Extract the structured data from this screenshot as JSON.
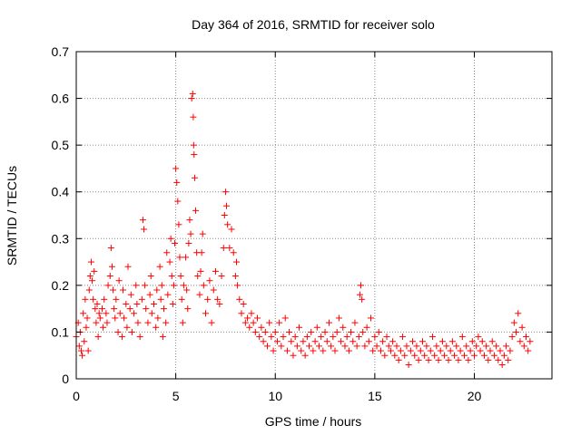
{
  "chart_data": {
    "type": "scatter",
    "title": "Day 364 of 2016, SRMTID for receiver solo",
    "xlabel": "GPS time / hours",
    "ylabel": "SRMTID / TECUs",
    "xlim": [
      0,
      23.9
    ],
    "ylim": [
      0,
      0.7
    ],
    "xticks": [
      0,
      5,
      10,
      15,
      20
    ],
    "yticks": [
      0,
      0.1,
      0.2,
      0.3,
      0.4,
      0.5,
      0.6,
      0.7
    ],
    "xtick_labels": [
      "0",
      "5",
      "10",
      "15",
      "20"
    ],
    "ytick_labels": [
      "0",
      "0.1",
      "0.2",
      "0.3",
      "0.4",
      "0.5",
      "0.6",
      "0.7"
    ],
    "grid": true,
    "marker": "+",
    "color": "#ff0000",
    "series": [
      {
        "name": "SRMTID",
        "points": [
          [
            0.0,
            0.09
          ],
          [
            0.1,
            0.12
          ],
          [
            0.15,
            0.07
          ],
          [
            0.2,
            0.1
          ],
          [
            0.25,
            0.06
          ],
          [
            0.3,
            0.05
          ],
          [
            0.35,
            0.14
          ],
          [
            0.4,
            0.08
          ],
          [
            0.45,
            0.17
          ],
          [
            0.5,
            0.11
          ],
          [
            0.55,
            0.13
          ],
          [
            0.6,
            0.06
          ],
          [
            0.65,
            0.19
          ],
          [
            0.7,
            0.22
          ],
          [
            0.75,
            0.25
          ],
          [
            0.8,
            0.21
          ],
          [
            0.85,
            0.17
          ],
          [
            0.9,
            0.23
          ],
          [
            0.95,
            0.15
          ],
          [
            1.0,
            0.12
          ],
          [
            1.05,
            0.16
          ],
          [
            1.1,
            0.09
          ],
          [
            1.15,
            0.14
          ],
          [
            1.2,
            0.13
          ],
          [
            1.3,
            0.15
          ],
          [
            1.35,
            0.11
          ],
          [
            1.4,
            0.17
          ],
          [
            1.5,
            0.14
          ],
          [
            1.55,
            0.12
          ],
          [
            1.6,
            0.2
          ],
          [
            1.7,
            0.22
          ],
          [
            1.75,
            0.28
          ],
          [
            1.8,
            0.24
          ],
          [
            1.85,
            0.19
          ],
          [
            1.9,
            0.15
          ],
          [
            1.95,
            0.13
          ],
          [
            2.0,
            0.17
          ],
          [
            2.1,
            0.1
          ],
          [
            2.15,
            0.21
          ],
          [
            2.2,
            0.14
          ],
          [
            2.3,
            0.09
          ],
          [
            2.35,
            0.19
          ],
          [
            2.4,
            0.13
          ],
          [
            2.5,
            0.16
          ],
          [
            2.55,
            0.11
          ],
          [
            2.6,
            0.24
          ],
          [
            2.7,
            0.15
          ],
          [
            2.75,
            0.18
          ],
          [
            2.8,
            0.1
          ],
          [
            2.9,
            0.14
          ],
          [
            3.0,
            0.2
          ],
          [
            3.05,
            0.16
          ],
          [
            3.1,
            0.12
          ],
          [
            3.2,
            0.09
          ],
          [
            3.3,
            0.17
          ],
          [
            3.35,
            0.34
          ],
          [
            3.4,
            0.32
          ],
          [
            3.45,
            0.2
          ],
          [
            3.5,
            0.15
          ],
          [
            3.6,
            0.12
          ],
          [
            3.7,
            0.18
          ],
          [
            3.75,
            0.22
          ],
          [
            3.8,
            0.14
          ],
          [
            3.9,
            0.16
          ],
          [
            4.0,
            0.11
          ],
          [
            4.05,
            0.19
          ],
          [
            4.1,
            0.13
          ],
          [
            4.2,
            0.24
          ],
          [
            4.25,
            0.17
          ],
          [
            4.3,
            0.2
          ],
          [
            4.35,
            0.09
          ],
          [
            4.4,
            0.15
          ],
          [
            4.5,
            0.12
          ],
          [
            4.55,
            0.27
          ],
          [
            4.6,
            0.18
          ],
          [
            4.7,
            0.25
          ],
          [
            4.75,
            0.3
          ],
          [
            4.8,
            0.22
          ],
          [
            4.85,
            0.16
          ],
          [
            4.9,
            0.2
          ],
          [
            4.95,
            0.29
          ],
          [
            5.0,
            0.45
          ],
          [
            5.05,
            0.42
          ],
          [
            5.1,
            0.38
          ],
          [
            5.15,
            0.33
          ],
          [
            5.2,
            0.26
          ],
          [
            5.25,
            0.22
          ],
          [
            5.3,
            0.17
          ],
          [
            5.35,
            0.12
          ],
          [
            5.4,
            0.2
          ],
          [
            5.5,
            0.26
          ],
          [
            5.55,
            0.19
          ],
          [
            5.6,
            0.15
          ],
          [
            5.65,
            0.29
          ],
          [
            5.7,
            0.34
          ],
          [
            5.75,
            0.31
          ],
          [
            5.8,
            0.6
          ],
          [
            5.85,
            0.61
          ],
          [
            5.88,
            0.56
          ],
          [
            5.9,
            0.5
          ],
          [
            5.92,
            0.48
          ],
          [
            5.95,
            0.43
          ],
          [
            6.0,
            0.36
          ],
          [
            6.05,
            0.27
          ],
          [
            6.1,
            0.22
          ],
          [
            6.2,
            0.18
          ],
          [
            6.25,
            0.23
          ],
          [
            6.3,
            0.27
          ],
          [
            6.35,
            0.31
          ],
          [
            6.4,
            0.2
          ],
          [
            6.5,
            0.14
          ],
          [
            6.6,
            0.17
          ],
          [
            6.7,
            0.21
          ],
          [
            6.8,
            0.12
          ],
          [
            6.9,
            0.19
          ],
          [
            7.0,
            0.23
          ],
          [
            7.1,
            0.17
          ],
          [
            7.2,
            0.16
          ],
          [
            7.3,
            0.22
          ],
          [
            7.4,
            0.28
          ],
          [
            7.45,
            0.35
          ],
          [
            7.5,
            0.4
          ],
          [
            7.55,
            0.37
          ],
          [
            7.6,
            0.33
          ],
          [
            7.7,
            0.28
          ],
          [
            7.8,
            0.32
          ],
          [
            7.9,
            0.27
          ],
          [
            8.0,
            0.22
          ],
          [
            8.05,
            0.25
          ],
          [
            8.1,
            0.2
          ],
          [
            8.2,
            0.17
          ],
          [
            8.3,
            0.14
          ],
          [
            8.4,
            0.16
          ],
          [
            8.5,
            0.12
          ],
          [
            8.6,
            0.13
          ],
          [
            8.7,
            0.11
          ],
          [
            8.8,
            0.14
          ],
          [
            8.9,
            0.12
          ],
          [
            9.0,
            0.1
          ],
          [
            9.1,
            0.13
          ],
          [
            9.2,
            0.09
          ],
          [
            9.3,
            0.11
          ],
          [
            9.4,
            0.08
          ],
          [
            9.5,
            0.1
          ],
          [
            9.6,
            0.07
          ],
          [
            9.7,
            0.12
          ],
          [
            9.8,
            0.09
          ],
          [
            9.9,
            0.06
          ],
          [
            10.0,
            0.1
          ],
          [
            10.1,
            0.08
          ],
          [
            10.2,
            0.12
          ],
          [
            10.3,
            0.07
          ],
          [
            10.4,
            0.09
          ],
          [
            10.5,
            0.13
          ],
          [
            10.6,
            0.06
          ],
          [
            10.7,
            0.1
          ],
          [
            10.8,
            0.08
          ],
          [
            10.9,
            0.05
          ],
          [
            11.0,
            0.09
          ],
          [
            11.1,
            0.07
          ],
          [
            11.2,
            0.11
          ],
          [
            11.3,
            0.06
          ],
          [
            11.4,
            0.08
          ],
          [
            11.5,
            0.05
          ],
          [
            11.6,
            0.09
          ],
          [
            11.7,
            0.07
          ],
          [
            11.8,
            0.1
          ],
          [
            11.9,
            0.06
          ],
          [
            12.0,
            0.08
          ],
          [
            12.1,
            0.11
          ],
          [
            12.2,
            0.07
          ],
          [
            12.3,
            0.09
          ],
          [
            12.4,
            0.06
          ],
          [
            12.5,
            0.1
          ],
          [
            12.6,
            0.08
          ],
          [
            12.7,
            0.12
          ],
          [
            12.8,
            0.07
          ],
          [
            12.9,
            0.09
          ],
          [
            13.0,
            0.06
          ],
          [
            13.1,
            0.1
          ],
          [
            13.2,
            0.13
          ],
          [
            13.3,
            0.08
          ],
          [
            13.4,
            0.11
          ],
          [
            13.5,
            0.07
          ],
          [
            13.6,
            0.09
          ],
          [
            13.7,
            0.06
          ],
          [
            13.8,
            0.1
          ],
          [
            13.9,
            0.08
          ],
          [
            14.0,
            0.12
          ],
          [
            14.1,
            0.07
          ],
          [
            14.2,
            0.09
          ],
          [
            14.25,
            0.18
          ],
          [
            14.3,
            0.2
          ],
          [
            14.35,
            0.17
          ],
          [
            14.4,
            0.1
          ],
          [
            14.5,
            0.07
          ],
          [
            14.6,
            0.11
          ],
          [
            14.7,
            0.08
          ],
          [
            14.8,
            0.13
          ],
          [
            14.9,
            0.06
          ],
          [
            15.0,
            0.09
          ],
          [
            15.1,
            0.07
          ],
          [
            15.2,
            0.1
          ],
          [
            15.3,
            0.06
          ],
          [
            15.4,
            0.08
          ],
          [
            15.5,
            0.05
          ],
          [
            15.6,
            0.09
          ],
          [
            15.7,
            0.07
          ],
          [
            15.8,
            0.06
          ],
          [
            15.9,
            0.08
          ],
          [
            16.0,
            0.05
          ],
          [
            16.1,
            0.07
          ],
          [
            16.2,
            0.04
          ],
          [
            16.3,
            0.06
          ],
          [
            16.4,
            0.09
          ],
          [
            16.5,
            0.05
          ],
          [
            16.6,
            0.07
          ],
          [
            16.7,
            0.03
          ],
          [
            16.8,
            0.06
          ],
          [
            16.9,
            0.08
          ],
          [
            17.0,
            0.05
          ],
          [
            17.1,
            0.07
          ],
          [
            17.2,
            0.04
          ],
          [
            17.3,
            0.06
          ],
          [
            17.4,
            0.08
          ],
          [
            17.5,
            0.05
          ],
          [
            17.6,
            0.07
          ],
          [
            17.7,
            0.04
          ],
          [
            17.8,
            0.06
          ],
          [
            17.9,
            0.09
          ],
          [
            18.0,
            0.05
          ],
          [
            18.1,
            0.07
          ],
          [
            18.2,
            0.04
          ],
          [
            18.3,
            0.06
          ],
          [
            18.4,
            0.08
          ],
          [
            18.5,
            0.05
          ],
          [
            18.6,
            0.07
          ],
          [
            18.7,
            0.04
          ],
          [
            18.8,
            0.06
          ],
          [
            18.9,
            0.08
          ],
          [
            19.0,
            0.05
          ],
          [
            19.1,
            0.07
          ],
          [
            19.2,
            0.04
          ],
          [
            19.3,
            0.06
          ],
          [
            19.4,
            0.09
          ],
          [
            19.5,
            0.05
          ],
          [
            19.6,
            0.07
          ],
          [
            19.7,
            0.04
          ],
          [
            19.8,
            0.06
          ],
          [
            19.9,
            0.08
          ],
          [
            20.0,
            0.05
          ],
          [
            20.1,
            0.07
          ],
          [
            20.2,
            0.09
          ],
          [
            20.3,
            0.06
          ],
          [
            20.4,
            0.08
          ],
          [
            20.5,
            0.05
          ],
          [
            20.6,
            0.07
          ],
          [
            20.7,
            0.04
          ],
          [
            20.8,
            0.06
          ],
          [
            20.9,
            0.08
          ],
          [
            21.0,
            0.05
          ],
          [
            21.1,
            0.07
          ],
          [
            21.2,
            0.04
          ],
          [
            21.3,
            0.06
          ],
          [
            21.4,
            0.03
          ],
          [
            21.5,
            0.05
          ],
          [
            21.6,
            0.07
          ],
          [
            21.7,
            0.04
          ],
          [
            21.8,
            0.06
          ],
          [
            21.9,
            0.09
          ],
          [
            22.0,
            0.12
          ],
          [
            22.1,
            0.1
          ],
          [
            22.2,
            0.14
          ],
          [
            22.3,
            0.08
          ],
          [
            22.4,
            0.11
          ],
          [
            22.5,
            0.07
          ],
          [
            22.6,
            0.09
          ],
          [
            22.7,
            0.06
          ],
          [
            22.8,
            0.08
          ]
        ]
      }
    ]
  }
}
